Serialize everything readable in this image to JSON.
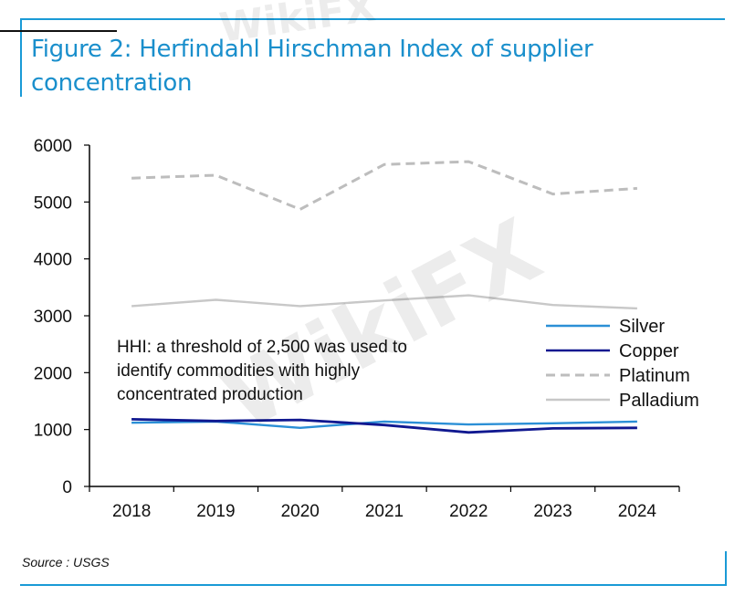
{
  "figure": {
    "title": "Figure 2: Herfindahl Hirschman Index of supplier concentration",
    "source": "Source : USGS",
    "watermark": "WikiFX"
  },
  "chart_data": {
    "type": "line",
    "categories": [
      "2018",
      "2019",
      "2020",
      "2021",
      "2022",
      "2023",
      "2024"
    ],
    "ylim": [
      0,
      6000
    ],
    "yticks": [
      "0",
      "1000",
      "2000",
      "3000",
      "4000",
      "5000",
      "6000"
    ],
    "grid": false,
    "legend_position": "right",
    "annotation": "HHI: a threshold of 2,500 was used to identify commodities with highly concentrated production",
    "annotation_lines": [
      "HHI: a threshold of 2,500 was used to",
      "identify commodities with highly",
      "concentrated production"
    ],
    "series": [
      {
        "name": "Silver",
        "values": [
          1120,
          1140,
          1030,
          1140,
          1090,
          1110,
          1140
        ],
        "color": "#2b8fd6",
        "dash": "solid"
      },
      {
        "name": "Copper",
        "values": [
          1180,
          1150,
          1170,
          1080,
          950,
          1020,
          1030
        ],
        "color": "#101890",
        "dash": "solid"
      },
      {
        "name": "Platinum",
        "values": [
          5420,
          5470,
          4870,
          5660,
          5710,
          5140,
          5240
        ],
        "color": "#bdbdbd",
        "dash": "dashed"
      },
      {
        "name": "Palladium",
        "values": [
          3170,
          3280,
          3170,
          3270,
          3360,
          3190,
          3130
        ],
        "color": "#c8c8c8",
        "dash": "solid"
      }
    ]
  }
}
